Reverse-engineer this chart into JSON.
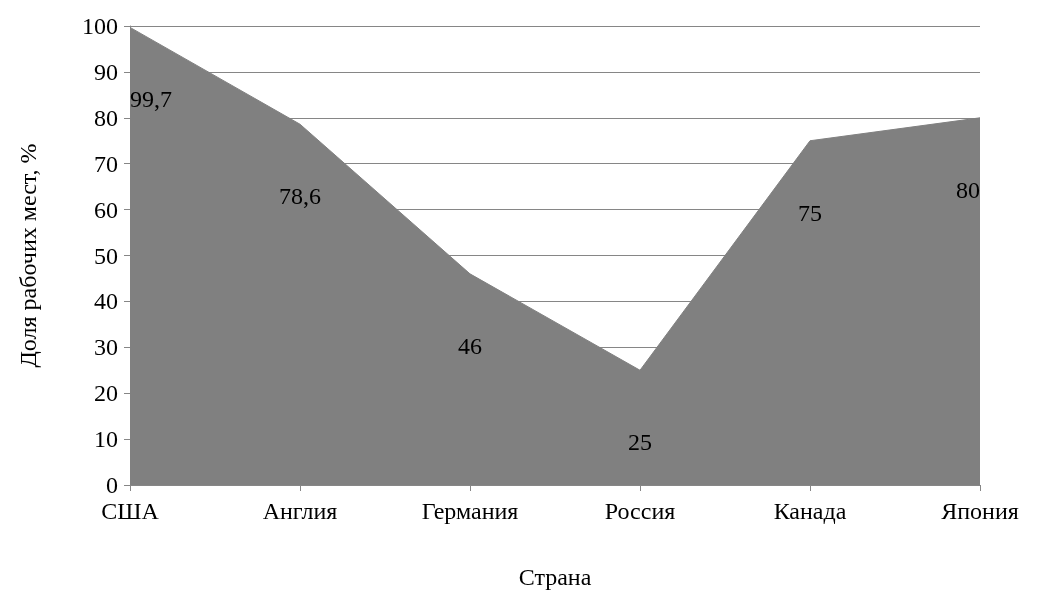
{
  "chart_data": {
    "type": "area",
    "xlabel": "Страна",
    "ylabel": "Доля рабочих мест, %",
    "categories": [
      "США",
      "Англия",
      "Германия",
      "Россия",
      "Канада",
      "Япония"
    ],
    "values": [
      99.7,
      78.6,
      46,
      25,
      75,
      80
    ],
    "value_labels": [
      "99,7",
      "78,6",
      "46",
      "25",
      "75",
      "80"
    ],
    "color": "#808080",
    "ylim": [
      0,
      100
    ],
    "yticks": [
      0,
      10,
      20,
      30,
      40,
      50,
      60,
      70,
      80,
      90,
      100
    ],
    "grid": "y"
  }
}
